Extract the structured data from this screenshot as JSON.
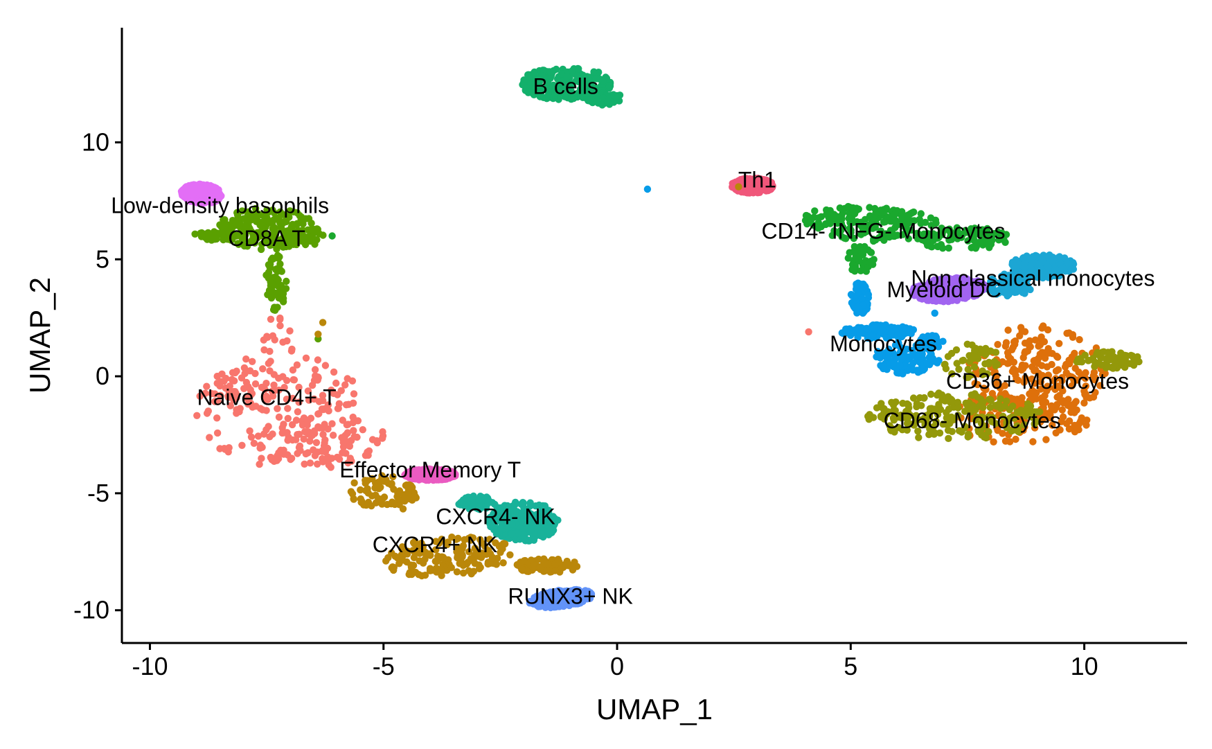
{
  "chart_data": {
    "type": "scatter",
    "xlabel": "UMAP_1",
    "ylabel": "UMAP_2",
    "xlim": [
      -10.6,
      12.2
    ],
    "ylim": [
      -11.4,
      14.9
    ],
    "x_ticks": [
      -10,
      -5,
      0,
      5,
      10
    ],
    "x_tick_labels": [
      "-10",
      "-5",
      "0",
      "5",
      "10"
    ],
    "y_ticks": [
      -10,
      -5,
      0,
      5,
      10
    ],
    "y_tick_labels": [
      "-10",
      "-5",
      "0",
      "5",
      "10"
    ],
    "grid": false,
    "legend": "none",
    "clusters": [
      {
        "label": "Naive CD4+ T",
        "color": "#F8766D",
        "label_at": [
          -7.5,
          -0.9
        ],
        "blobs": [
          [
            -7.2,
            -1.5,
            1.8,
            2.5,
            0,
            0.5
          ],
          [
            -6.3,
            -2.8,
            1.4,
            1.1,
            0.4,
            0.25
          ],
          [
            -7.3,
            1.7,
            0.45,
            1.0,
            0,
            0.05
          ],
          [
            -7.8,
            -0.5,
            0.8,
            1.2,
            0,
            0.1
          ]
        ]
      },
      {
        "label": "CD8A T",
        "color": "#5AA000",
        "label_at": [
          -7.5,
          5.9
        ],
        "blobs": [
          [
            -7.5,
            6.3,
            1.05,
            0.9,
            0,
            0.55
          ],
          [
            -7.3,
            4.0,
            0.22,
            1.2,
            0,
            0.2
          ],
          [
            -8.6,
            6.0,
            0.5,
            0.2,
            0,
            0.15
          ],
          [
            -6.7,
            6.0,
            0.5,
            0.4,
            0,
            0.1
          ]
        ]
      },
      {
        "label": "Low-density basophils",
        "color": "#E36EF6",
        "label_at": [
          -8.5,
          7.3
        ],
        "blobs": [
          [
            -8.9,
            7.8,
            0.45,
            0.4,
            -0.6,
            1.0
          ]
        ]
      },
      {
        "label": "B cells",
        "color": "#13B06B",
        "label_at": [
          -1.1,
          12.4
        ],
        "blobs": [
          [
            -1.1,
            12.5,
            1.0,
            0.7,
            0,
            0.8
          ],
          [
            -0.3,
            11.9,
            0.4,
            0.3,
            0,
            0.2
          ]
        ]
      },
      {
        "label": "Th1",
        "color": "#F0577A",
        "label_at": [
          3.0,
          8.4
        ],
        "blobs": [
          [
            2.9,
            8.15,
            0.45,
            0.32,
            0,
            1.0
          ]
        ]
      },
      {
        "label": "CD14- INFG- Monocytes",
        "color": "#1AA82E",
        "label_at": [
          5.7,
          6.2
        ],
        "blobs": [
          [
            5.5,
            6.5,
            1.55,
            0.75,
            -0.15,
            0.55
          ],
          [
            7.4,
            5.9,
            1.0,
            0.5,
            0,
            0.3
          ],
          [
            5.2,
            5.0,
            0.3,
            0.6,
            0,
            0.15
          ]
        ]
      },
      {
        "label": "Non classical monocytes",
        "color": "#1CA6D4",
        "label_at": [
          8.9,
          4.2
        ],
        "blobs": [
          [
            9.1,
            4.7,
            0.7,
            0.5,
            0,
            0.7
          ],
          [
            8.4,
            3.9,
            0.5,
            0.5,
            0,
            0.3
          ]
        ]
      },
      {
        "label": "Myeloid DC",
        "color": "#A164F0",
        "label_at": [
          7.0,
          3.7
        ],
        "blobs": [
          [
            7.1,
            3.7,
            0.8,
            0.5,
            0.2,
            1.0
          ]
        ]
      },
      {
        "label": "Monocytes",
        "color": "#079CE8",
        "label_at": [
          5.7,
          1.4
        ],
        "blobs": [
          [
            5.6,
            1.9,
            0.8,
            0.3,
            0,
            0.35
          ],
          [
            6.2,
            0.8,
            0.7,
            0.7,
            0,
            0.35
          ],
          [
            5.2,
            3.3,
            0.2,
            0.7,
            0,
            0.2
          ],
          [
            6.7,
            1.5,
            0.3,
            0.3,
            0,
            0.1
          ]
        ]
      },
      {
        "label": "CD36+ Monocytes",
        "color": "#DE700B",
        "label_at": [
          9.0,
          -0.2
        ],
        "blobs": [
          [
            9.0,
            0.2,
            1.5,
            2.0,
            0,
            0.65
          ],
          [
            8.6,
            -1.8,
            1.5,
            1.1,
            0,
            0.35
          ]
        ]
      },
      {
        "label": "CD68- Monocytes",
        "color": "#93980A",
        "label_at": [
          7.6,
          -1.9
        ],
        "blobs": [
          [
            7.2,
            -1.7,
            1.9,
            1.0,
            0,
            0.65
          ],
          [
            10.5,
            0.7,
            0.7,
            0.4,
            0,
            0.2
          ],
          [
            7.6,
            0.6,
            0.6,
            0.8,
            0,
            0.15
          ]
        ]
      },
      {
        "label": "Effector Memory T",
        "color": "#EA5BC1",
        "label_at": [
          -4.0,
          -4.0
        ],
        "blobs": [
          [
            -4.0,
            -4.2,
            0.55,
            0.25,
            0,
            1.0
          ]
        ]
      },
      {
        "label": "CXCR4- NK",
        "color": "#19B29A",
        "label_at": [
          -2.6,
          -6.0
        ],
        "blobs": [
          [
            -2.0,
            -6.2,
            0.75,
            0.85,
            0,
            0.8
          ],
          [
            -3.0,
            -5.4,
            0.4,
            0.3,
            0,
            0.2
          ]
        ]
      },
      {
        "label": "CXCR4+ NK",
        "color": "#BA870A",
        "label_at": [
          -3.9,
          -7.2
        ],
        "blobs": [
          [
            -3.6,
            -7.7,
            1.4,
            0.85,
            0.2,
            0.5
          ],
          [
            -5.0,
            -5.0,
            0.7,
            0.8,
            0.5,
            0.25
          ],
          [
            -1.5,
            -8.1,
            0.7,
            0.3,
            0,
            0.25
          ]
        ]
      },
      {
        "label": "RUNX3+ NK",
        "color": "#6293F8",
        "label_at": [
          -1.0,
          -9.4
        ],
        "blobs": [
          [
            -1.2,
            -9.5,
            0.7,
            0.35,
            0.3,
            1.0
          ]
        ]
      }
    ],
    "stray_points": [
      {
        "x": 0.65,
        "y": 8.0,
        "color": "#079CE8"
      },
      {
        "x": -6.4,
        "y": 1.6,
        "color": "#5AA000"
      },
      {
        "x": -6.3,
        "y": 2.3,
        "color": "#BA870A"
      },
      {
        "x": -6.4,
        "y": 1.8,
        "color": "#BA870A"
      },
      {
        "x": -6.1,
        "y": 6.0,
        "color": "#1AA82E"
      },
      {
        "x": 4.1,
        "y": 1.9,
        "color": "#F8766D"
      },
      {
        "x": 2.6,
        "y": 8.1,
        "color": "#BA870A"
      },
      {
        "x": 6.8,
        "y": 2.7,
        "color": "#079CE8"
      }
    ]
  }
}
